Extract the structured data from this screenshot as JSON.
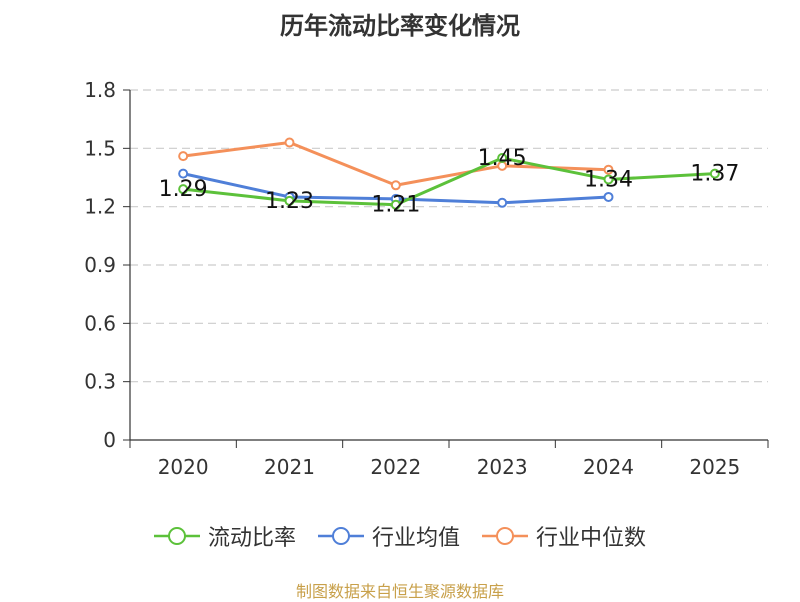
{
  "title": "历年流动比率变化情况",
  "source": "制图数据来自恒生聚源数据库",
  "chart_data": {
    "type": "line",
    "title": "历年流动比率变化情况",
    "categories": [
      "2020",
      "2021",
      "2022",
      "2023",
      "2024",
      "2025"
    ],
    "ylim": [
      0,
      1.8
    ],
    "yticks": [
      "0",
      "0.3",
      "0.6",
      "0.9",
      "1.2",
      "1.5",
      "1.8"
    ],
    "grid": true,
    "legend_position": "bottom",
    "series": [
      {
        "name": "流动比率",
        "color": "#5cc13a",
        "values": [
          1.29,
          1.23,
          1.21,
          1.45,
          1.34,
          1.37
        ],
        "labels": [
          "1.29",
          "1.23",
          "1.21",
          "1.45",
          "1.34",
          "1.37"
        ]
      },
      {
        "name": "行业均值",
        "color": "#4f7fd8",
        "values": [
          1.37,
          1.25,
          1.24,
          1.22,
          1.25,
          null
        ]
      },
      {
        "name": "行业中位数",
        "color": "#f4905a",
        "values": [
          1.46,
          1.53,
          1.31,
          1.41,
          1.39,
          null
        ]
      }
    ]
  }
}
